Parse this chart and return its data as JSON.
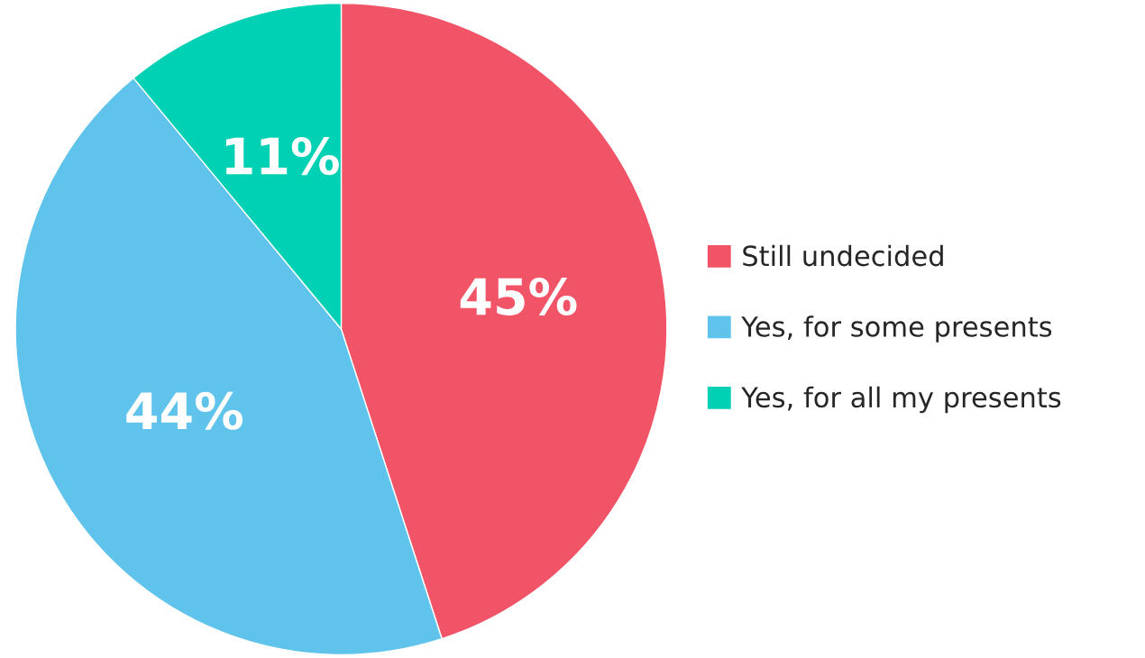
{
  "chart_data": {
    "type": "pie",
    "categories": [
      "Still undecided",
      "Yes, for some presents",
      "Yes, for all my presents"
    ],
    "values": [
      45,
      44,
      11
    ],
    "value_labels": [
      "45%",
      "44%",
      "11%"
    ],
    "colors": [
      "#f25467",
      "#60c3ec",
      "#00d0b3"
    ],
    "legend": "right"
  }
}
